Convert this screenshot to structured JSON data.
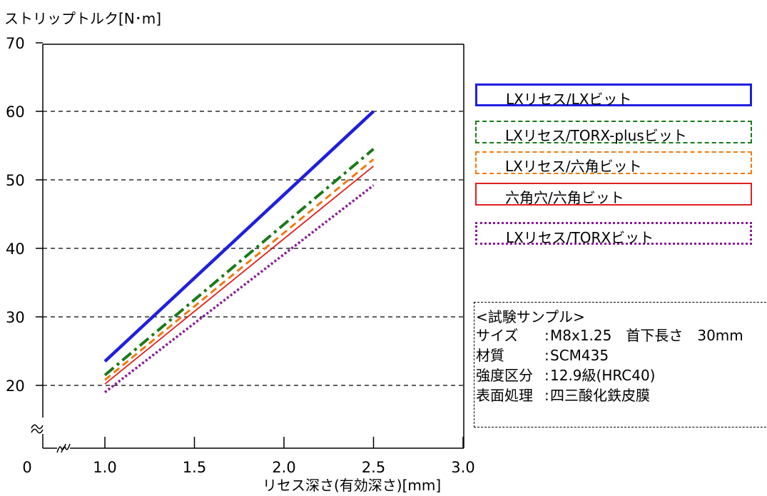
{
  "chart_data": {
    "type": "line",
    "ylabel": "ストリップトルク[N･m]",
    "xlabel": "リセス深さ(有効深さ)[mm]",
    "xlim": [
      0,
      3.0
    ],
    "ylim": [
      0,
      70
    ],
    "x_ticks": [
      "0",
      "1.0",
      "1.5",
      "2.0",
      "2.5",
      "3.0"
    ],
    "y_ticks": [
      "20",
      "30",
      "40",
      "50",
      "60",
      "70"
    ],
    "grid": "horizontal dashed",
    "axis_break": true,
    "legend_position": "right",
    "series": [
      {
        "name": "LXリセス/LXビット",
        "color": "#1f1fe0",
        "style": "solid-thick",
        "x": [
          1.0,
          2.5
        ],
        "y": [
          23.5,
          60.0
        ]
      },
      {
        "name": "LXリセス/TORX-plusビット",
        "color": "#1a7a1a",
        "style": "dashdot",
        "x": [
          1.0,
          2.5
        ],
        "y": [
          21.5,
          54.5
        ]
      },
      {
        "name": "LXリセス/六角ビット",
        "color": "#f07a10",
        "style": "dashed",
        "x": [
          1.0,
          2.5
        ],
        "y": [
          20.8,
          53.0
        ]
      },
      {
        "name": "六角穴/六角ビット",
        "color": "#e02020",
        "style": "solid-thin",
        "x": [
          1.0,
          2.5
        ],
        "y": [
          20.2,
          52.0
        ]
      },
      {
        "name": "LXリセス/TORXビット",
        "color": "#8a1a9a",
        "style": "dotted",
        "x": [
          1.0,
          2.5
        ],
        "y": [
          19.0,
          49.2
        ]
      }
    ]
  },
  "sample": {
    "title": "<試験サンプル>",
    "rows": [
      {
        "key": "サイズ",
        "value": "M8x1.25　首下長さ　30mm"
      },
      {
        "key": "材質",
        "value": "SCM435"
      },
      {
        "key": "強度区分",
        "value": "12.9級(HRC40)"
      },
      {
        "key": "表面処理",
        "value": "四三酸化鉄皮膜"
      }
    ]
  }
}
